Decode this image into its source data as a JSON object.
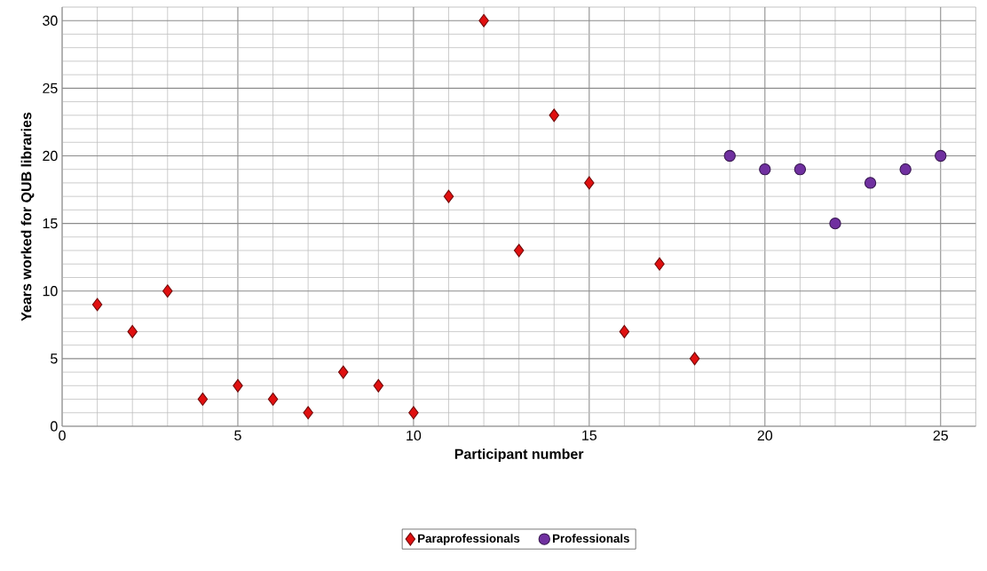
{
  "chart_data": {
    "type": "scatter",
    "xlabel": "Participant number",
    "ylabel": "Years worked for QUB libraries",
    "xlim": [
      0,
      26
    ],
    "xticks": [
      0,
      5,
      10,
      15,
      20,
      25
    ],
    "ylim": [
      0,
      31
    ],
    "yticks": [
      0,
      5,
      10,
      15,
      20,
      25,
      30
    ],
    "grid": true,
    "legend": "bottom",
    "series": [
      {
        "name": "Paraprofessionals",
        "color": "#e01010",
        "marker": "diamond",
        "x": [
          1,
          2,
          3,
          4,
          5,
          6,
          7,
          8,
          9,
          10,
          11,
          12,
          13,
          14,
          15,
          16,
          17,
          18
        ],
        "values": [
          9,
          7,
          10,
          2,
          3,
          2,
          1,
          4,
          3,
          1,
          17,
          30,
          13,
          23,
          18,
          7,
          12,
          5
        ]
      },
      {
        "name": "Professionals",
        "color": "#7030a0",
        "marker": "circle",
        "x": [
          19,
          20,
          21,
          22,
          23,
          24,
          25
        ],
        "values": [
          20,
          19,
          19,
          15,
          18,
          19,
          20
        ]
      }
    ]
  }
}
